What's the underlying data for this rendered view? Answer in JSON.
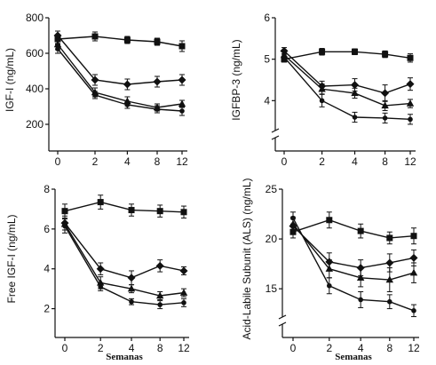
{
  "chart_data": [
    {
      "type": "line",
      "ylabel": "IGF-I (ng/mL)",
      "xlabel": "",
      "x": [
        0,
        2,
        4,
        8,
        12
      ],
      "xticks": [
        "0",
        "2",
        "4",
        "8",
        "12"
      ],
      "ylim": [
        100,
        800
      ],
      "yticks": [
        "200",
        "400",
        "600",
        "800"
      ],
      "series": [
        {
          "marker": "square",
          "values": [
            680,
            695,
            675,
            665,
            640
          ],
          "err": [
            25,
            25,
            20,
            20,
            30
          ]
        },
        {
          "marker": "diamond",
          "values": [
            700,
            450,
            425,
            440,
            450
          ],
          "err": [
            25,
            30,
            30,
            30,
            30
          ]
        },
        {
          "marker": "triangle",
          "values": [
            650,
            380,
            330,
            295,
            315
          ],
          "err": [
            30,
            25,
            25,
            20,
            20
          ]
        },
        {
          "marker": "circle",
          "values": [
            625,
            365,
            310,
            285,
            275
          ],
          "err": [
            25,
            20,
            20,
            20,
            25
          ]
        }
      ]
    },
    {
      "type": "line",
      "ylabel": "IGFBP-3 (ng/mL)",
      "xlabel": "",
      "x": [
        0,
        2,
        4,
        8,
        12
      ],
      "xticks": [
        "0",
        "2",
        "4",
        "8",
        "12"
      ],
      "ylim": [
        3.0,
        6.0
      ],
      "axis_break": true,
      "yticks": [
        "4",
        "5",
        "6"
      ],
      "series": [
        {
          "marker": "square",
          "values": [
            5.0,
            5.18,
            5.18,
            5.12,
            5.03
          ],
          "err": [
            0.07,
            0.08,
            0.07,
            0.08,
            0.1
          ]
        },
        {
          "marker": "diamond",
          "values": [
            5.2,
            4.35,
            4.38,
            4.18,
            4.4
          ],
          "err": [
            0.08,
            0.12,
            0.15,
            0.2,
            0.15
          ]
        },
        {
          "marker": "triangle",
          "values": [
            5.1,
            4.28,
            4.18,
            3.88,
            3.93
          ],
          "err": [
            0.08,
            0.12,
            0.12,
            0.12,
            0.1
          ]
        },
        {
          "marker": "circle",
          "values": [
            5.05,
            4.0,
            3.6,
            3.58,
            3.55
          ],
          "err": [
            0.08,
            0.15,
            0.12,
            0.12,
            0.12
          ]
        }
      ]
    },
    {
      "type": "line",
      "ylabel": "Free IGF-I (ng/mL)",
      "xlabel": "Semanas",
      "x": [
        0,
        2,
        4,
        8,
        12
      ],
      "xticks": [
        "0",
        "2",
        "4",
        "8",
        "12"
      ],
      "ylim": [
        1.0,
        8.0
      ],
      "yticks": [
        "2",
        "4",
        "6",
        "8"
      ],
      "series": [
        {
          "marker": "square",
          "values": [
            6.9,
            7.35,
            6.95,
            6.9,
            6.85
          ],
          "err": [
            0.35,
            0.35,
            0.3,
            0.3,
            0.3
          ]
        },
        {
          "marker": "diamond",
          "values": [
            6.3,
            4.0,
            3.55,
            4.15,
            3.9
          ],
          "err": [
            0.35,
            0.3,
            0.35,
            0.3,
            0.2
          ]
        },
        {
          "marker": "triangle",
          "values": [
            6.25,
            3.3,
            3.0,
            2.65,
            2.8
          ],
          "err": [
            0.3,
            0.3,
            0.2,
            0.2,
            0.2
          ]
        },
        {
          "marker": "circle",
          "values": [
            6.15,
            3.1,
            2.35,
            2.2,
            2.3
          ],
          "err": [
            0.35,
            0.2,
            0.15,
            0.2,
            0.2
          ]
        }
      ]
    },
    {
      "type": "line",
      "ylabel": "Acid-Labile Subunit (ALS) (ng/mL)",
      "xlabel": "Semanas",
      "x": [
        0,
        2,
        4,
        8,
        12
      ],
      "xticks": [
        "0",
        "2",
        "4",
        "8",
        "12"
      ],
      "ylim": [
        11.0,
        25.0
      ],
      "axis_break": true,
      "yticks": [
        "15",
        "20",
        "25"
      ],
      "series": [
        {
          "marker": "square",
          "values": [
            20.7,
            21.9,
            20.8,
            20.1,
            20.3
          ],
          "err": [
            0.6,
            0.8,
            0.7,
            0.6,
            0.8
          ]
        },
        {
          "marker": "diamond",
          "values": [
            21.3,
            17.7,
            17.1,
            17.6,
            18.1
          ],
          "err": [
            0.7,
            0.9,
            0.8,
            0.9,
            0.8
          ]
        },
        {
          "marker": "triangle",
          "values": [
            21.5,
            17.0,
            16.1,
            15.9,
            16.6
          ],
          "err": [
            0.7,
            0.9,
            0.9,
            1.2,
            1.0
          ]
        },
        {
          "marker": "circle",
          "values": [
            22.1,
            15.3,
            13.9,
            13.7,
            12.8
          ],
          "err": [
            0.6,
            0.8,
            0.8,
            0.7,
            0.6
          ]
        }
      ]
    }
  ],
  "style": {
    "line_color": "#111111",
    "marker_color": "#111111"
  }
}
